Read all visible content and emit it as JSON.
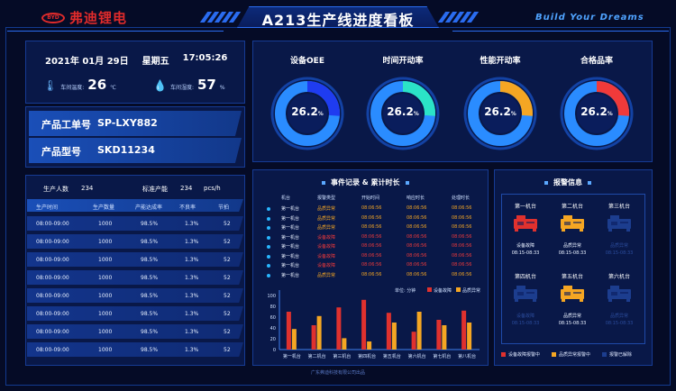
{
  "header": {
    "logo_mark": "BYD",
    "logo_text": "弗迪锂电",
    "title": "A213生产线进度看板",
    "slogan": "Build Your Dreams"
  },
  "datetime": {
    "date": "2021年 01月 29日",
    "weekday": "星期五",
    "time": "17:05:26"
  },
  "environment": {
    "temperature": {
      "label": "车间温度:",
      "value": "26",
      "unit": "℃"
    },
    "humidity": {
      "label": "车间湿度:",
      "value": "57",
      "unit": "%"
    }
  },
  "product": {
    "order_label": "产品工单号",
    "order_value": "SP-LXY882",
    "model_label": "产品型号",
    "model_value": "SKD11234"
  },
  "production": {
    "people_label": "生产人数",
    "people_value": "234",
    "capacity_label": "标准产能",
    "capacity_value": "234",
    "capacity_unit": "pcs/h",
    "columns": [
      "生产时间",
      "生产数量",
      "产能达成率",
      "不良率",
      "节拍"
    ],
    "rows": [
      [
        "08:00-09:00",
        "1000",
        "98.5%",
        "1.3%",
        "52"
      ],
      [
        "08:00-09:00",
        "1000",
        "98.5%",
        "1.3%",
        "52"
      ],
      [
        "08:00-09:00",
        "1000",
        "98.5%",
        "1.3%",
        "52"
      ],
      [
        "08:00-09:00",
        "1000",
        "98.5%",
        "1.3%",
        "52"
      ],
      [
        "08:00-09:00",
        "1000",
        "98.5%",
        "1.3%",
        "52"
      ],
      [
        "08:00-09:00",
        "1000",
        "98.5%",
        "1.3%",
        "52"
      ],
      [
        "08:00-09:00",
        "1000",
        "98.5%",
        "1.3%",
        "52"
      ],
      [
        "08:00-09:00",
        "1000",
        "98.5%",
        "1.3%",
        "52"
      ]
    ]
  },
  "gauges": [
    {
      "title": "设备OEE",
      "value": "26.2",
      "unit": "%",
      "fraction": 0.262,
      "color": "#1f3cf0"
    },
    {
      "title": "时间开动率",
      "value": "26.2",
      "unit": "%",
      "fraction": 0.262,
      "color": "#2be3c7"
    },
    {
      "title": "性能开动率",
      "value": "26.2",
      "unit": "%",
      "fraction": 0.262,
      "color": "#f5a623"
    },
    {
      "title": "合格品率",
      "value": "26.2",
      "unit": "%",
      "fraction": 0.262,
      "color": "#f03a3a"
    }
  ],
  "events": {
    "title": "事件记录 & 累计时长",
    "columns": [
      "机台",
      "报警类型",
      "开始时间",
      "响应时长",
      "处理时长"
    ],
    "rows": [
      {
        "cells": [
          "第一机台",
          "品质异常",
          "08:06:56",
          "08:06:56",
          "08:06:56"
        ],
        "color": "#f5a623"
      },
      {
        "cells": [
          "第一机台",
          "品质异常",
          "08:06:56",
          "08:06:56",
          "08:06:56"
        ],
        "color": "#f5a623"
      },
      {
        "cells": [
          "第一机台",
          "品质异常",
          "08:06:56",
          "08:06:56",
          "08:06:56"
        ],
        "color": "#f5a623"
      },
      {
        "cells": [
          "第一机台",
          "设备故障",
          "08:06:56",
          "08:06:56",
          "08:06:56"
        ],
        "color": "#f03a3a"
      },
      {
        "cells": [
          "第一机台",
          "设备故障",
          "08:06:56",
          "08:06:56",
          "08:06:56"
        ],
        "color": "#f03a3a"
      },
      {
        "cells": [
          "第一机台",
          "设备故障",
          "08:06:56",
          "08:06:56",
          "08:06:56"
        ],
        "color": "#f03a3a"
      },
      {
        "cells": [
          "第一机台",
          "设备故障",
          "08:06:56",
          "08:06:56",
          "08:06:56"
        ],
        "color": "#f03a3a"
      },
      {
        "cells": [
          "第一机台",
          "品质异常",
          "08:06:56",
          "08:06:56",
          "08:06:56"
        ],
        "color": "#f5a623"
      }
    ]
  },
  "chart_data": {
    "type": "bar",
    "unit_label": "单位: 分钟",
    "categories": [
      "第一机台",
      "第二机台",
      "第三机台",
      "第四机台",
      "第五机台",
      "第六机台",
      "第七机台",
      "第八机台"
    ],
    "series": [
      {
        "name": "设备故障",
        "color": "#e0312e",
        "values": [
          70,
          45,
          78,
          92,
          68,
          33,
          55,
          72
        ]
      },
      {
        "name": "品质异常",
        "color": "#f5a623",
        "values": [
          38,
          62,
          21,
          15,
          50,
          70,
          45,
          50
        ]
      }
    ],
    "yticks": [
      "0",
      "20",
      "40",
      "60",
      "80",
      "100"
    ],
    "ylim": [
      0,
      100
    ]
  },
  "alarms": {
    "title": "报警信息",
    "machines": [
      {
        "name": "第一机台",
        "state": "fault",
        "status": "设备故障",
        "time": "08:15-08:33"
      },
      {
        "name": "第二机台",
        "state": "quality",
        "status": "品质异常",
        "time": "08:15-08:33"
      },
      {
        "name": "第三机台",
        "state": "cleared",
        "status": "品质异常",
        "time": "08:15-08:33"
      },
      {
        "name": "第四机台",
        "state": "cleared",
        "status": "设备故障",
        "time": "08:15-08:33"
      },
      {
        "name": "第五机台",
        "state": "quality",
        "status": "品质异常",
        "time": "08:15-08:33"
      },
      {
        "name": "第六机台",
        "state": "cleared",
        "status": "品质异常",
        "time": "08:15-08:33"
      }
    ],
    "legend": [
      {
        "label": "设备故障报警中",
        "color": "#e0312e"
      },
      {
        "label": "品质异常报警中",
        "color": "#f5a623"
      },
      {
        "label": "报警已解除",
        "color": "#1c3d8e"
      }
    ],
    "state_colors": {
      "fault": "#e0312e",
      "quality": "#f5a623",
      "cleared": "#1c3d8e"
    }
  },
  "footer": "广东弗迪科技有限公司出品"
}
